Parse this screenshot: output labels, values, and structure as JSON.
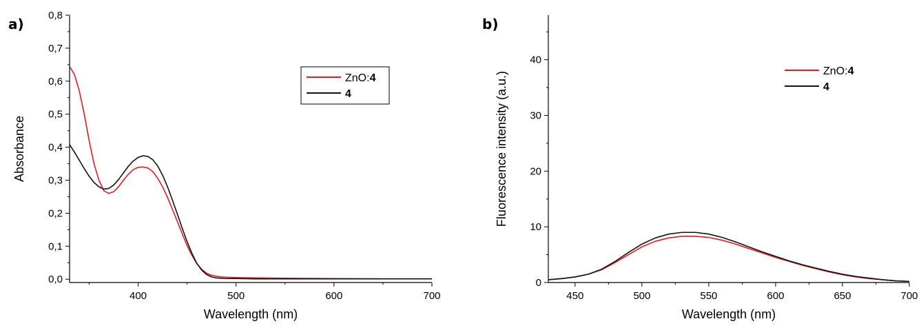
{
  "chart_data": [
    {
      "panel_label": "a)",
      "type": "line",
      "xlabel": "Wavelength (nm)",
      "ylabel": "Absorbance",
      "xlim": [
        330,
        700
      ],
      "ylim": [
        -0.01,
        0.8
      ],
      "xticks": [
        400,
        500,
        600,
        700
      ],
      "yticks": [
        0.0,
        0.1,
        0.2,
        0.3,
        0.4,
        0.5,
        0.6,
        0.7,
        0.8
      ],
      "ytick_labels": [
        "0,0",
        "0,1",
        "0,2",
        "0,3",
        "0,4",
        "0,5",
        "0,6",
        "0,7",
        "0,8"
      ],
      "legend_position": "top-right",
      "series": [
        {
          "name": "ZnO:4",
          "name_parts": [
            "ZnO:",
            "4"
          ],
          "color": "#e8181e",
          "x": [
            330,
            335,
            340,
            345,
            350,
            355,
            360,
            365,
            370,
            375,
            380,
            385,
            390,
            395,
            400,
            405,
            410,
            415,
            420,
            425,
            430,
            435,
            440,
            445,
            450,
            455,
            460,
            465,
            470,
            475,
            480,
            485,
            490,
            500,
            520,
            550,
            600,
            650,
            700
          ],
          "y": [
            0.645,
            0.62,
            0.57,
            0.5,
            0.42,
            0.35,
            0.3,
            0.268,
            0.26,
            0.265,
            0.28,
            0.3,
            0.318,
            0.332,
            0.339,
            0.34,
            0.337,
            0.326,
            0.306,
            0.28,
            0.248,
            0.212,
            0.175,
            0.138,
            0.102,
            0.072,
            0.047,
            0.03,
            0.018,
            0.012,
            0.009,
            0.007,
            0.006,
            0.005,
            0.004,
            0.003,
            0.002,
            0.001,
            0.001
          ]
        },
        {
          "name": "4",
          "name_parts": [
            "",
            "4"
          ],
          "color": "#111111",
          "x": [
            330,
            335,
            340,
            345,
            350,
            355,
            360,
            365,
            370,
            375,
            380,
            385,
            390,
            395,
            400,
            405,
            410,
            415,
            420,
            425,
            430,
            435,
            440,
            445,
            450,
            455,
            460,
            465,
            470,
            475,
            480,
            485,
            490,
            500,
            520,
            550,
            600,
            650,
            700
          ],
          "y": [
            0.408,
            0.385,
            0.36,
            0.335,
            0.312,
            0.293,
            0.28,
            0.273,
            0.275,
            0.285,
            0.302,
            0.322,
            0.342,
            0.358,
            0.369,
            0.374,
            0.372,
            0.362,
            0.343,
            0.315,
            0.28,
            0.24,
            0.198,
            0.155,
            0.114,
            0.078,
            0.048,
            0.027,
            0.014,
            0.007,
            0.004,
            0.003,
            0.002,
            0.002,
            0.001,
            0.001,
            0.001,
            0.001,
            0.001
          ]
        }
      ]
    },
    {
      "panel_label": "b)",
      "type": "line",
      "xlabel": "Wavelength (nm)",
      "ylabel": "Fluorescence intensity (a.u.)",
      "xlim": [
        430,
        700
      ],
      "ylim": [
        0,
        48
      ],
      "xticks": [
        450,
        500,
        550,
        600,
        650,
        700
      ],
      "yticks": [
        0,
        10,
        20,
        30,
        40
      ],
      "ytick_labels": [
        "0",
        "10",
        "20",
        "30",
        "40"
      ],
      "legend_position": "top-right",
      "series": [
        {
          "name": "ZnO:4",
          "name_parts": [
            "ZnO:",
            "4"
          ],
          "color": "#e8181e",
          "x": [
            430,
            440,
            450,
            460,
            470,
            480,
            490,
            500,
            510,
            520,
            530,
            540,
            550,
            560,
            570,
            580,
            590,
            600,
            610,
            620,
            630,
            640,
            650,
            660,
            670,
            680,
            690,
            700
          ],
          "y": [
            0.5,
            0.7,
            1.0,
            1.5,
            2.3,
            3.6,
            5.0,
            6.4,
            7.4,
            8.0,
            8.3,
            8.3,
            8.1,
            7.6,
            6.9,
            6.1,
            5.3,
            4.5,
            3.8,
            3.1,
            2.5,
            1.9,
            1.4,
            1.0,
            0.7,
            0.5,
            0.3,
            0.2
          ]
        },
        {
          "name": "4",
          "name_parts": [
            "",
            "4"
          ],
          "color": "#111111",
          "x": [
            430,
            440,
            450,
            460,
            470,
            480,
            490,
            500,
            510,
            520,
            530,
            540,
            550,
            560,
            570,
            580,
            590,
            600,
            610,
            620,
            630,
            640,
            650,
            660,
            670,
            680,
            690,
            700
          ],
          "y": [
            0.5,
            0.7,
            1.0,
            1.5,
            2.4,
            3.8,
            5.4,
            6.9,
            8.0,
            8.7,
            9.0,
            9.0,
            8.7,
            8.1,
            7.3,
            6.4,
            5.5,
            4.7,
            3.9,
            3.2,
            2.6,
            2.0,
            1.5,
            1.1,
            0.8,
            0.5,
            0.3,
            0.2
          ]
        }
      ]
    }
  ]
}
